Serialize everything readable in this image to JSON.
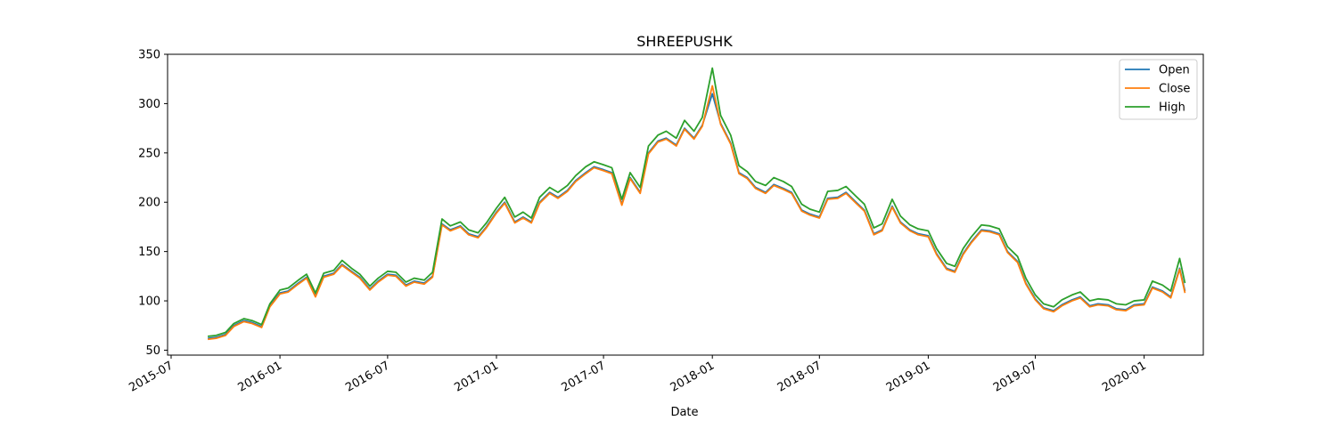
{
  "chart_data": {
    "type": "line",
    "title": "SHREEPUSHK",
    "xlabel": "Date",
    "ylabel": "",
    "ylim": [
      45,
      350
    ],
    "xlim": [
      "2015-06-25",
      "2020-04-10"
    ],
    "grid": false,
    "legend_position": "top-right",
    "y_ticks": [
      50,
      100,
      150,
      200,
      250,
      300,
      350
    ],
    "x_ticks": [
      "2015-07",
      "2016-01",
      "2016-07",
      "2017-01",
      "2017-07",
      "2018-01",
      "2018-07",
      "2019-01",
      "2019-07",
      "2020-01"
    ],
    "x": [
      "2015-09-01",
      "2015-09-15",
      "2015-10-01",
      "2015-10-15",
      "2015-11-01",
      "2015-11-15",
      "2015-12-01",
      "2015-12-15",
      "2016-01-01",
      "2016-01-15",
      "2016-02-01",
      "2016-02-15",
      "2016-03-01",
      "2016-03-15",
      "2016-04-01",
      "2016-04-15",
      "2016-05-01",
      "2016-05-15",
      "2016-06-01",
      "2016-06-15",
      "2016-07-01",
      "2016-07-15",
      "2016-08-01",
      "2016-08-15",
      "2016-09-01",
      "2016-09-15",
      "2016-10-01",
      "2016-10-15",
      "2016-11-01",
      "2016-11-15",
      "2016-12-01",
      "2016-12-15",
      "2017-01-01",
      "2017-01-15",
      "2017-02-01",
      "2017-02-15",
      "2017-03-01",
      "2017-03-15",
      "2017-04-01",
      "2017-04-15",
      "2017-05-01",
      "2017-05-15",
      "2017-06-01",
      "2017-06-15",
      "2017-07-01",
      "2017-07-15",
      "2017-08-01",
      "2017-08-15",
      "2017-09-01",
      "2017-09-15",
      "2017-10-01",
      "2017-10-15",
      "2017-11-01",
      "2017-11-15",
      "2017-12-01",
      "2017-12-15",
      "2018-01-01",
      "2018-01-15",
      "2018-02-01",
      "2018-02-15",
      "2018-03-01",
      "2018-03-15",
      "2018-04-01",
      "2018-04-15",
      "2018-05-01",
      "2018-05-15",
      "2018-06-01",
      "2018-06-15",
      "2018-07-01",
      "2018-07-15",
      "2018-08-01",
      "2018-08-15",
      "2018-09-01",
      "2018-09-15",
      "2018-10-01",
      "2018-10-15",
      "2018-11-01",
      "2018-11-15",
      "2018-12-01",
      "2018-12-15",
      "2019-01-01",
      "2019-01-15",
      "2019-02-01",
      "2019-02-15",
      "2019-03-01",
      "2019-03-15",
      "2019-04-01",
      "2019-04-15",
      "2019-05-01",
      "2019-05-15",
      "2019-06-01",
      "2019-06-15",
      "2019-07-01",
      "2019-07-15",
      "2019-08-01",
      "2019-08-15",
      "2019-09-01",
      "2019-09-15",
      "2019-10-01",
      "2019-10-15",
      "2019-11-01",
      "2019-11-15",
      "2019-12-01",
      "2019-12-15",
      "2020-01-01",
      "2020-01-15",
      "2020-02-01",
      "2020-02-15",
      "2020-03-01",
      "2020-03-10"
    ],
    "series": [
      {
        "name": "Open",
        "color": "#1f77b4",
        "values": [
          62,
          63,
          66,
          75,
          80,
          78,
          74,
          95,
          108,
          110,
          118,
          124,
          105,
          125,
          128,
          137,
          130,
          124,
          112,
          120,
          127,
          126,
          116,
          120,
          118,
          125,
          178,
          172,
          176,
          168,
          165,
          175,
          190,
          200,
          180,
          185,
          180,
          200,
          210,
          205,
          212,
          222,
          230,
          236,
          233,
          230,
          198,
          225,
          210,
          250,
          262,
          265,
          258,
          275,
          265,
          278,
          310,
          280,
          260,
          230,
          225,
          215,
          210,
          218,
          214,
          210,
          192,
          188,
          185,
          204,
          205,
          210,
          200,
          192,
          168,
          172,
          196,
          180,
          172,
          168,
          166,
          148,
          133,
          130,
          148,
          160,
          172,
          171,
          168,
          150,
          140,
          118,
          102,
          93,
          90,
          96,
          101,
          104,
          95,
          97,
          96,
          92,
          91,
          96,
          97,
          114,
          110,
          104,
          133,
          110
        ]
      },
      {
        "name": "Close",
        "color": "#ff7f0e",
        "values": [
          61,
          62,
          65,
          74,
          79,
          77,
          73,
          94,
          107,
          109,
          117,
          123,
          104,
          124,
          127,
          136,
          129,
          123,
          111,
          119,
          126,
          125,
          115,
          119,
          117,
          124,
          177,
          171,
          175,
          167,
          164,
          174,
          189,
          199,
          179,
          184,
          179,
          199,
          209,
          204,
          211,
          221,
          229,
          235,
          232,
          229,
          197,
          224,
          209,
          249,
          261,
          264,
          257,
          274,
          264,
          277,
          318,
          279,
          259,
          229,
          224,
          214,
          209,
          217,
          213,
          209,
          191,
          187,
          184,
          203,
          204,
          209,
          199,
          191,
          167,
          171,
          195,
          179,
          171,
          167,
          165,
          147,
          132,
          129,
          147,
          159,
          171,
          170,
          167,
          149,
          139,
          117,
          101,
          92,
          89,
          95,
          100,
          103,
          94,
          96,
          95,
          91,
          90,
          95,
          96,
          113,
          109,
          103,
          132,
          108
        ]
      },
      {
        "name": "High",
        "color": "#2ca02c",
        "values": [
          64,
          65,
          68,
          77,
          82,
          80,
          76,
          97,
          111,
          113,
          121,
          127,
          108,
          128,
          131,
          141,
          133,
          127,
          115,
          123,
          130,
          129,
          119,
          123,
          121,
          129,
          183,
          176,
          180,
          172,
          169,
          179,
          194,
          205,
          185,
          190,
          184,
          205,
          215,
          210,
          217,
          227,
          236,
          241,
          238,
          235,
          203,
          230,
          215,
          257,
          268,
          272,
          265,
          283,
          272,
          286,
          336,
          288,
          268,
          237,
          231,
          221,
          217,
          225,
          221,
          216,
          198,
          193,
          190,
          211,
          212,
          216,
          206,
          198,
          174,
          178,
          203,
          186,
          177,
          173,
          171,
          153,
          138,
          135,
          153,
          165,
          177,
          176,
          173,
          155,
          145,
          123,
          106,
          97,
          94,
          101,
          106,
          109,
          100,
          102,
          101,
          97,
          96,
          100,
          101,
          120,
          116,
          110,
          143,
          118
        ]
      }
    ]
  }
}
